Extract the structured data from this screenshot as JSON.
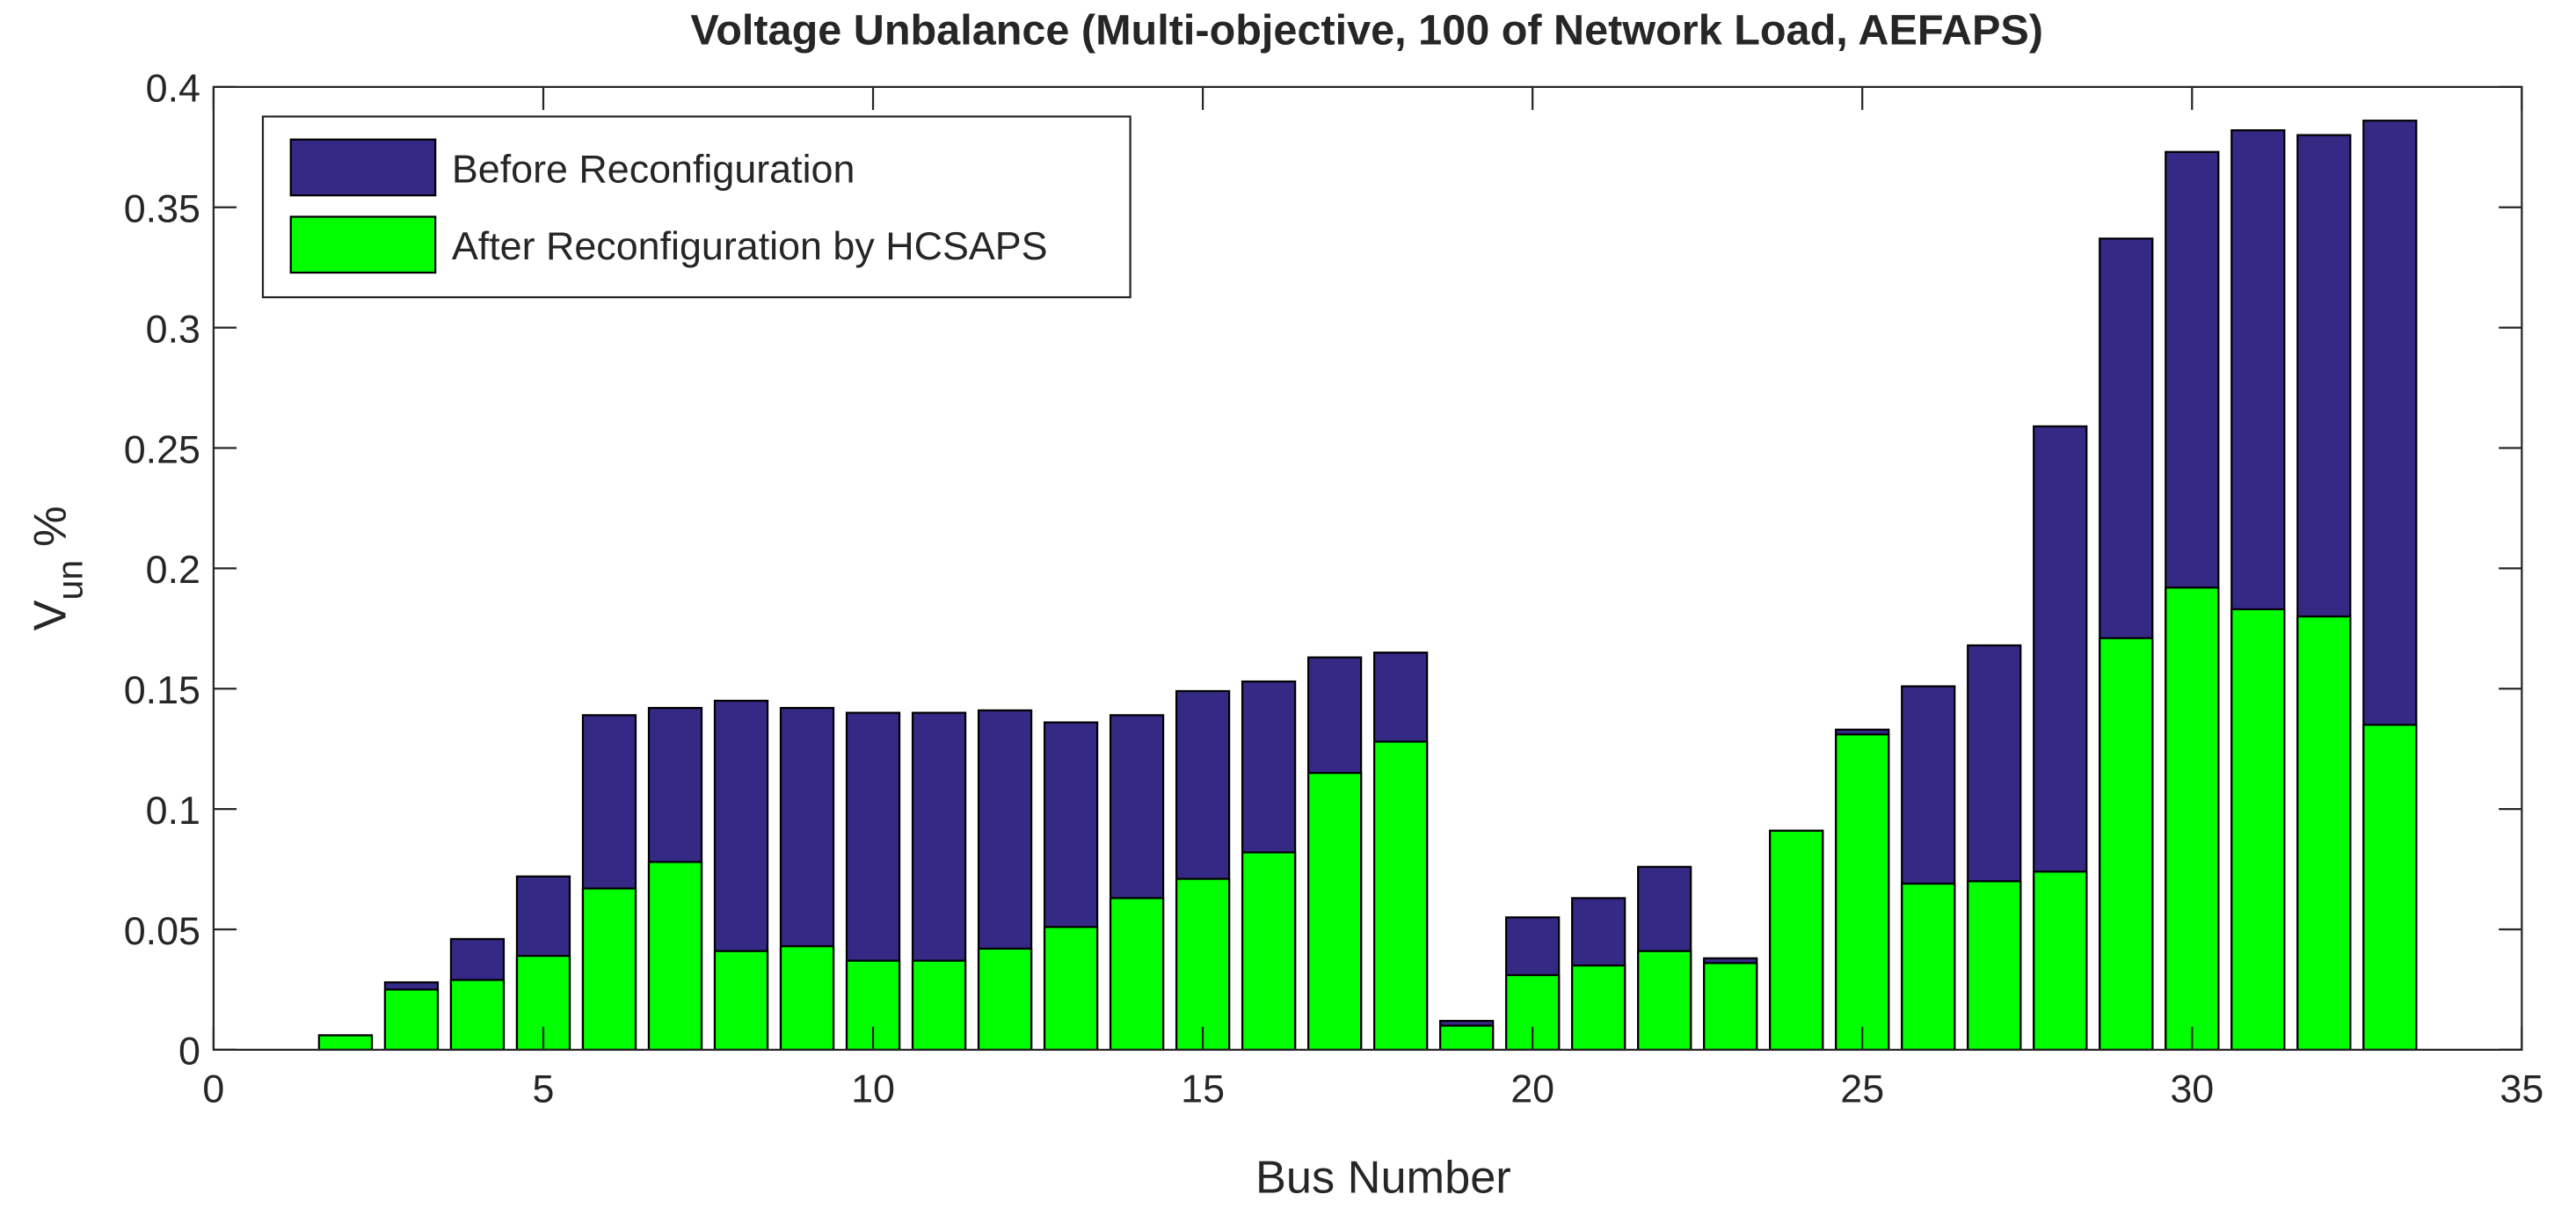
{
  "chart_data": {
    "type": "bar",
    "title": "Voltage Unbalance (Multi-objective, 100 of Network Load, AEFAPS)",
    "xlabel": "Bus Number",
    "ylabel": "V",
    "ylabel_sub": "un",
    "ylabel_unit": "%",
    "x": [
      1,
      2,
      3,
      4,
      5,
      6,
      7,
      8,
      9,
      10,
      11,
      12,
      13,
      14,
      15,
      16,
      17,
      18,
      19,
      20,
      21,
      22,
      23,
      24,
      25,
      26,
      27,
      28,
      29,
      30,
      31,
      32,
      33
    ],
    "series": [
      {
        "name": "Before Reconfiguration",
        "color": "#342a85",
        "values": [
          0,
          0.006,
          0.028,
          0.046,
          0.072,
          0.139,
          0.142,
          0.145,
          0.142,
          0.14,
          0.14,
          0.141,
          0.136,
          0.139,
          0.149,
          0.153,
          0.163,
          0.165,
          0.012,
          0.055,
          0.063,
          0.076,
          0.038,
          0.091,
          0.133,
          0.151,
          0.168,
          0.259,
          0.337,
          0.373,
          0.382,
          0.38,
          0.386
        ]
      },
      {
        "name": "After Reconfiguration by HCSAPS",
        "color": "#00ff00",
        "values": [
          0,
          0.006,
          0.025,
          0.029,
          0.039,
          0.067,
          0.078,
          0.041,
          0.043,
          0.037,
          0.037,
          0.042,
          0.051,
          0.063,
          0.071,
          0.082,
          0.115,
          0.128,
          0.01,
          0.031,
          0.035,
          0.041,
          0.036,
          0.091,
          0.131,
          0.069,
          0.07,
          0.074,
          0.171,
          0.192,
          0.183,
          0.18,
          0.135
        ]
      }
    ],
    "xlim": [
      0,
      35
    ],
    "xticks": [
      0,
      5,
      10,
      15,
      20,
      25,
      30,
      35
    ],
    "ylim": [
      0,
      0.4
    ],
    "yticks": [
      0,
      0.05,
      0.1,
      0.15,
      0.2,
      0.25,
      0.3,
      0.35,
      0.4
    ],
    "bar_width": 0.8,
    "legend": "upper left",
    "grid": false
  }
}
